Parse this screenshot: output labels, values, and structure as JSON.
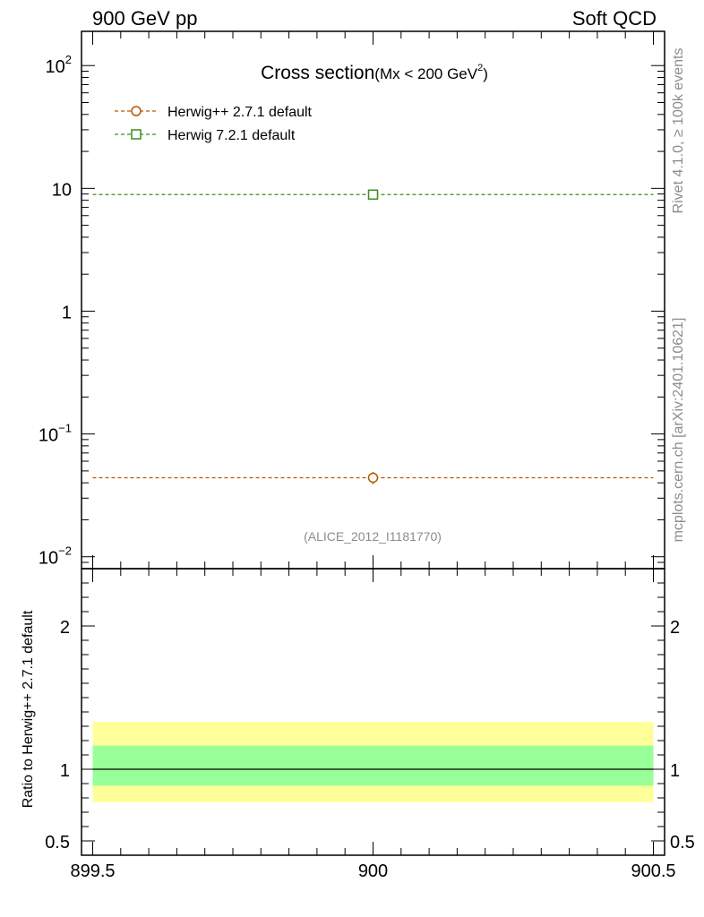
{
  "header": {
    "left": "900 GeV pp",
    "right": "Soft QCD"
  },
  "side_labels": {
    "rivet": "Rivet 4.1.0, ≥ 100k events",
    "mcplots": "mcplots.cern.ch [arXiv:2401.10621]"
  },
  "chart_data": [
    {
      "type": "scatter",
      "title_main": "Cross section",
      "title_sub": "(Mx < 200 GeV",
      "title_sup": "2",
      "title_end": ")",
      "watermark": "(ALICE_2012_I1181770)",
      "yscale": "log",
      "xlim": [
        899.5,
        900.5
      ],
      "ylim": [
        0.008,
        190
      ],
      "x_ticks": [
        "899.5",
        "900",
        "900.5"
      ],
      "y_ticks": [
        {
          "value": 100,
          "base": "10",
          "exp": "2"
        },
        {
          "value": 10,
          "base": "10",
          "exp": ""
        },
        {
          "value": 1,
          "base": "1",
          "exp": ""
        },
        {
          "value": 0.1,
          "base": "10",
          "exp": "−1"
        },
        {
          "value": 0.01,
          "base": "10",
          "exp": "−2"
        }
      ],
      "legend_position": "top-left",
      "series": [
        {
          "name": "Herwig++ 2.7.1 default",
          "marker": "circle",
          "color": "#b35900",
          "x": 900,
          "y": 0.044,
          "yerr_low": 0.039,
          "yerr_high": 0.049
        },
        {
          "name": "Herwig 7.2.1 default",
          "marker": "square",
          "color": "#3a8f1a",
          "x": 900,
          "y": 8.9,
          "yerr_low": 8.85,
          "yerr_high": 8.95
        }
      ]
    },
    {
      "type": "area",
      "ylabel": "Ratio to Herwig++ 2.7.1 default",
      "xlim": [
        899.5,
        900.5
      ],
      "ylim": [
        0.4,
        2.4
      ],
      "y_ticks": [
        "2",
        "1",
        "0.5"
      ],
      "y_tick_values": [
        2,
        1,
        0.5
      ],
      "reference_line": 1,
      "bands": [
        {
          "name": "outer",
          "color": "#ffff99",
          "low": 0.77,
          "high": 1.33
        },
        {
          "name": "inner",
          "color": "#99ff99",
          "low": 0.885,
          "high": 1.165
        }
      ]
    }
  ]
}
